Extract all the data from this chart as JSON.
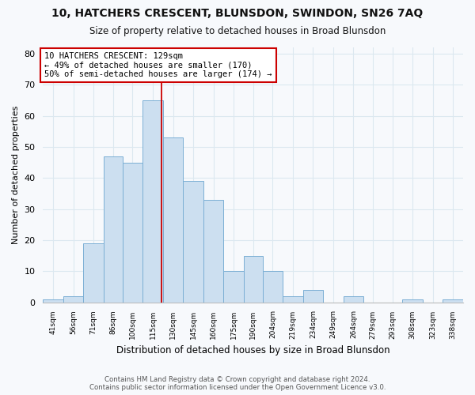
{
  "title": "10, HATCHERS CRESCENT, BLUNSDON, SWINDON, SN26 7AQ",
  "subtitle": "Size of property relative to detached houses in Broad Blunsdon",
  "xlabel": "Distribution of detached houses by size in Broad Blunsdon",
  "ylabel": "Number of detached properties",
  "bin_labels": [
    "41sqm",
    "56sqm",
    "71sqm",
    "86sqm",
    "100sqm",
    "115sqm",
    "130sqm",
    "145sqm",
    "160sqm",
    "175sqm",
    "190sqm",
    "204sqm",
    "219sqm",
    "234sqm",
    "249sqm",
    "264sqm",
    "279sqm",
    "293sqm",
    "308sqm",
    "323sqm",
    "338sqm"
  ],
  "bin_edges": [
    41,
    56,
    71,
    86,
    100,
    115,
    130,
    145,
    160,
    175,
    190,
    204,
    219,
    234,
    249,
    264,
    279,
    293,
    308,
    323,
    338,
    353
  ],
  "counts": [
    1,
    2,
    19,
    47,
    45,
    65,
    53,
    39,
    33,
    10,
    15,
    10,
    2,
    4,
    0,
    2,
    0,
    0,
    1,
    0,
    1
  ],
  "bar_color": "#ccdff0",
  "bar_edge_color": "#7bafd4",
  "reference_line_x": 129,
  "reference_line_color": "#cc0000",
  "annotation_line1": "10 HATCHERS CRESCENT: 129sqm",
  "annotation_line2": "← 49% of detached houses are smaller (170)",
  "annotation_line3": "50% of semi-detached houses are larger (174) →",
  "annotation_box_color": "#ffffff",
  "annotation_box_edge_color": "#cc0000",
  "ylim": [
    0,
    82
  ],
  "yticks": [
    0,
    10,
    20,
    30,
    40,
    50,
    60,
    70,
    80
  ],
  "footer_line1": "Contains HM Land Registry data © Crown copyright and database right 2024.",
  "footer_line2": "Contains public sector information licensed under the Open Government Licence v3.0.",
  "bg_color": "#f7f9fc",
  "grid_color": "#dce8f0"
}
